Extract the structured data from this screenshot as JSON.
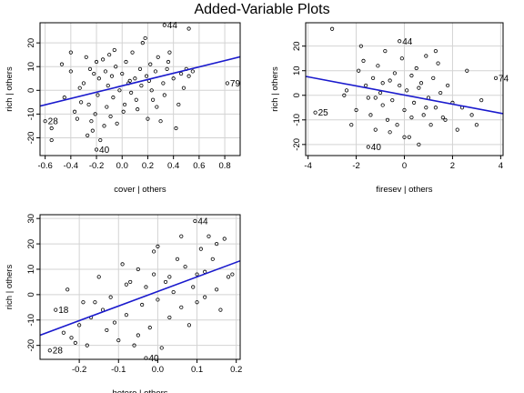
{
  "title": "Added-Variable Plots",
  "chart_data": [
    {
      "type": "scatter",
      "xlabel": "cover | others",
      "ylabel": "rich  | others",
      "xlim": [
        -0.64,
        0.92
      ],
      "ylim": [
        -27.5,
        28.5
      ],
      "xticks": [
        -0.6,
        -0.4,
        -0.2,
        0.0,
        0.2,
        0.4,
        0.6,
        0.8
      ],
      "xticklabels": [
        "-0.6",
        "-0.4",
        "-0.2",
        "0.0",
        "0.2",
        "0.4",
        "0.6",
        "0.8"
      ],
      "yticks": [
        -20,
        -10,
        0,
        10,
        20
      ],
      "yticklabels": [
        "-20",
        "-10",
        "0",
        "10",
        "20"
      ],
      "grid": true,
      "fit": {
        "intercept": 1.9,
        "slope": 13.3
      },
      "labels": [
        {
          "text": "44",
          "x": 0.33,
          "y": 27.5
        },
        {
          "text": "79",
          "x": 0.82,
          "y": 3
        },
        {
          "text": "28",
          "x": -0.6,
          "y": -13
        },
        {
          "text": "40",
          "x": -0.2,
          "y": -25
        }
      ],
      "points": [
        [
          0.33,
          27.5
        ],
        [
          0.52,
          26
        ],
        [
          0.82,
          3
        ],
        [
          -0.6,
          -13
        ],
        [
          -0.2,
          -25
        ],
        [
          -0.55,
          -16
        ],
        [
          -0.55,
          -21
        ],
        [
          -0.47,
          11
        ],
        [
          -0.45,
          -3
        ],
        [
          -0.4,
          16
        ],
        [
          -0.4,
          8
        ],
        [
          -0.37,
          -9
        ],
        [
          -0.35,
          -12
        ],
        [
          -0.32,
          -5
        ],
        [
          -0.3,
          3
        ],
        [
          -0.28,
          14
        ],
        [
          -0.26,
          -6
        ],
        [
          -0.25,
          9
        ],
        [
          -0.24,
          -13
        ],
        [
          -0.23,
          -17
        ],
        [
          -0.21,
          -10
        ],
        [
          -0.2,
          12
        ],
        [
          -0.19,
          -2
        ],
        [
          -0.18,
          5
        ],
        [
          -0.17,
          -21
        ],
        [
          -0.15,
          13
        ],
        [
          -0.13,
          8
        ],
        [
          -0.12,
          -7
        ],
        [
          -0.11,
          2
        ],
        [
          -0.1,
          15
        ],
        [
          -0.09,
          -11
        ],
        [
          -0.08,
          6
        ],
        [
          -0.07,
          -3
        ],
        [
          -0.05,
          10
        ],
        [
          -0.04,
          -14
        ],
        [
          -0.02,
          0
        ],
        [
          0.0,
          7
        ],
        [
          0.02,
          -6
        ],
        [
          0.03,
          12
        ],
        [
          0.05,
          3
        ],
        [
          0.07,
          -1
        ],
        [
          0.08,
          16
        ],
        [
          0.1,
          5
        ],
        [
          0.12,
          -8
        ],
        [
          0.14,
          9
        ],
        [
          0.15,
          2
        ],
        [
          0.16,
          20
        ],
        [
          0.18,
          22
        ],
        [
          0.2,
          -12
        ],
        [
          0.21,
          4
        ],
        [
          0.22,
          11
        ],
        [
          0.24,
          -4
        ],
        [
          0.26,
          8
        ],
        [
          0.28,
          14
        ],
        [
          0.3,
          -13
        ],
        [
          0.32,
          3
        ],
        [
          0.33,
          -2
        ],
        [
          0.35,
          9
        ],
        [
          0.37,
          16
        ],
        [
          0.4,
          5
        ],
        [
          0.42,
          -16
        ],
        [
          0.44,
          -6
        ],
        [
          0.46,
          7
        ],
        [
          0.48,
          1
        ],
        [
          0.5,
          9
        ],
        [
          0.52,
          6
        ],
        [
          0.55,
          8
        ],
        [
          -0.33,
          1
        ],
        [
          -0.27,
          -19
        ],
        [
          -0.14,
          -15
        ],
        [
          -0.06,
          17
        ],
        [
          0.01,
          -9
        ],
        [
          0.11,
          -4
        ],
        [
          0.19,
          6
        ],
        [
          0.27,
          -7
        ],
        [
          0.36,
          12
        ],
        [
          -0.22,
          7
        ],
        [
          0.06,
          4
        ],
        [
          0.23,
          0
        ]
      ]
    },
    {
      "type": "scatter",
      "xlabel": "firesev | others",
      "ylabel": "rich  | others",
      "xlim": [
        -4.1,
        4.1
      ],
      "ylim": [
        -24.5,
        29.5
      ],
      "xticks": [
        -4,
        -2,
        0,
        2,
        4
      ],
      "xticklabels": [
        "-4",
        "-2",
        "0",
        "2",
        "4"
      ],
      "yticks": [
        -20,
        -10,
        0,
        10,
        20
      ],
      "yticklabels": [
        "-20",
        "-10",
        "0",
        "10",
        "20"
      ],
      "grid": true,
      "fit": {
        "intercept": 0.1,
        "slope": -1.85
      },
      "labels": [
        {
          "text": "44",
          "x": -0.2,
          "y": 22
        },
        {
          "text": "74",
          "x": 3.8,
          "y": 7
        },
        {
          "text": "25",
          "x": -3.7,
          "y": -7
        },
        {
          "text": "40",
          "x": -1.5,
          "y": -21
        }
      ],
      "points": [
        [
          -0.2,
          22
        ],
        [
          3.8,
          7
        ],
        [
          -3.7,
          -7
        ],
        [
          -1.5,
          -21
        ],
        [
          -3.0,
          27
        ],
        [
          -2.5,
          0
        ],
        [
          -2.2,
          -12
        ],
        [
          -2.0,
          -6
        ],
        [
          -1.9,
          10
        ],
        [
          -1.8,
          20
        ],
        [
          -1.7,
          14
        ],
        [
          -1.6,
          4
        ],
        [
          -1.5,
          -1
        ],
        [
          -1.4,
          -8
        ],
        [
          -1.3,
          7
        ],
        [
          -1.2,
          -14
        ],
        [
          -1.1,
          12
        ],
        [
          -1.0,
          1
        ],
        [
          -0.9,
          -4
        ],
        [
          -0.8,
          18
        ],
        [
          -0.7,
          -10
        ],
        [
          -0.6,
          6
        ],
        [
          -0.5,
          -2
        ],
        [
          -0.4,
          9
        ],
        [
          -0.3,
          -12
        ],
        [
          -0.2,
          4
        ],
        [
          -0.1,
          15
        ],
        [
          0.0,
          -6
        ],
        [
          0.1,
          2
        ],
        [
          0.2,
          -17
        ],
        [
          0.3,
          8
        ],
        [
          0.4,
          -3
        ],
        [
          0.5,
          11
        ],
        [
          0.6,
          -20
        ],
        [
          0.7,
          5
        ],
        [
          0.8,
          -8
        ],
        [
          0.9,
          16
        ],
        [
          1.0,
          -1
        ],
        [
          1.1,
          -12
        ],
        [
          1.2,
          7
        ],
        [
          1.3,
          -5
        ],
        [
          1.4,
          13
        ],
        [
          1.5,
          1
        ],
        [
          1.6,
          -9
        ],
        [
          1.8,
          4
        ],
        [
          2.0,
          -3
        ],
        [
          2.2,
          -14
        ],
        [
          2.4,
          -5
        ],
        [
          2.6,
          10
        ],
        [
          2.8,
          -8
        ],
        [
          3.0,
          -12
        ],
        [
          3.2,
          -2
        ],
        [
          -1.2,
          -1
        ],
        [
          -0.6,
          -15
        ],
        [
          0.0,
          -17
        ],
        [
          0.6,
          3
        ],
        [
          1.3,
          18
        ],
        [
          -2.4,
          2
        ],
        [
          0.3,
          -9
        ],
        [
          0.9,
          -5
        ],
        [
          -0.9,
          5
        ],
        [
          1.7,
          -10
        ]
      ]
    },
    {
      "type": "scatter",
      "xlabel": "hetero | others",
      "ylabel": "rich  | others",
      "xlim": [
        -0.3,
        0.21
      ],
      "ylim": [
        -25.5,
        31.5
      ],
      "xticks": [
        -0.2,
        -0.1,
        0.0,
        0.1,
        0.2
      ],
      "xticklabels": [
        "-0.2",
        "-0.1",
        "0.0",
        "0.1",
        "0.2"
      ],
      "yticks": [
        -20,
        -10,
        0,
        10,
        20,
        30
      ],
      "yticklabels": [
        "-20",
        "-10",
        "0",
        "10",
        "20",
        "30"
      ],
      "grid": true,
      "fit": {
        "intercept": 1.25,
        "slope": 57.5
      },
      "labels": [
        {
          "text": "44",
          "x": 0.095,
          "y": 29
        },
        {
          "text": "18",
          "x": -0.26,
          "y": -6
        },
        {
          "text": "28",
          "x": -0.275,
          "y": -22
        },
        {
          "text": "40",
          "x": -0.03,
          "y": -25
        }
      ],
      "points": [
        [
          0.095,
          29
        ],
        [
          -0.26,
          -6
        ],
        [
          -0.275,
          -22
        ],
        [
          -0.03,
          -25
        ],
        [
          -0.24,
          -15
        ],
        [
          -0.23,
          2
        ],
        [
          -0.22,
          -17
        ],
        [
          -0.21,
          -19
        ],
        [
          -0.2,
          -12
        ],
        [
          -0.19,
          -3
        ],
        [
          -0.18,
          -20
        ],
        [
          -0.17,
          -9
        ],
        [
          -0.16,
          -3
        ],
        [
          -0.15,
          7
        ],
        [
          -0.14,
          -6
        ],
        [
          -0.12,
          -1
        ],
        [
          -0.11,
          -11
        ],
        [
          -0.1,
          -18
        ],
        [
          -0.09,
          12
        ],
        [
          -0.08,
          -8
        ],
        [
          -0.07,
          5
        ],
        [
          -0.06,
          -20
        ],
        [
          -0.05,
          10
        ],
        [
          -0.04,
          -4
        ],
        [
          -0.03,
          3
        ],
        [
          -0.02,
          -13
        ],
        [
          -0.01,
          8
        ],
        [
          0.0,
          -2
        ],
        [
          0.0,
          19
        ],
        [
          0.01,
          -21
        ],
        [
          0.02,
          5
        ],
        [
          0.03,
          -9
        ],
        [
          0.04,
          1
        ],
        [
          0.05,
          14
        ],
        [
          0.06,
          -5
        ],
        [
          0.07,
          11
        ],
        [
          0.08,
          -12
        ],
        [
          0.09,
          3
        ],
        [
          0.1,
          -3
        ],
        [
          0.11,
          18
        ],
        [
          0.12,
          9
        ],
        [
          0.13,
          23
        ],
        [
          0.14,
          14
        ],
        [
          0.15,
          20
        ],
        [
          0.16,
          -6
        ],
        [
          0.17,
          22
        ],
        [
          0.18,
          7
        ],
        [
          0.19,
          8
        ],
        [
          -0.13,
          -14
        ],
        [
          -0.01,
          17
        ],
        [
          0.06,
          23
        ],
        [
          0.12,
          -1
        ],
        [
          -0.05,
          -16
        ],
        [
          0.03,
          7
        ],
        [
          0.15,
          2
        ],
        [
          0.1,
          8
        ],
        [
          -0.08,
          4
        ]
      ]
    }
  ]
}
